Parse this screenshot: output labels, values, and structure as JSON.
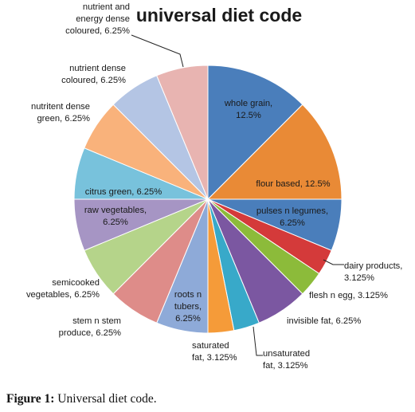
{
  "chart_data": {
    "type": "pie",
    "title": "universal diet code",
    "slices": [
      {
        "name": "whole grain",
        "value": 12.5,
        "pct_label": "12.5%",
        "color": "#4a7ebb"
      },
      {
        "name": "flour based",
        "value": 12.5,
        "pct_label": "12.5%",
        "color": "#e98a36"
      },
      {
        "name": "pulses n legumes",
        "value": 6.25,
        "pct_label": "6.25%",
        "color": "#4a7ebb"
      },
      {
        "name": "dairy products",
        "value": 3.125,
        "pct_label": "3.125%",
        "color": "#d43a3a"
      },
      {
        "name": "flesh n egg",
        "value": 3.125,
        "pct_label": "3.125%",
        "color": "#8cbb3a"
      },
      {
        "name": "invisible fat",
        "value": 6.25,
        "pct_label": "6.25%",
        "color": "#7b57a1"
      },
      {
        "name": "unsaturated fat",
        "value": 3.125,
        "pct_label": "3.125%",
        "color": "#38a9c9"
      },
      {
        "name": "saturated fat",
        "value": 3.125,
        "pct_label": "3.125%",
        "color": "#f59b39"
      },
      {
        "name": "roots n tubers",
        "value": 6.25,
        "pct_label": "6.25%",
        "color": "#8eaad8"
      },
      {
        "name": "stem n stem produce",
        "value": 6.25,
        "pct_label": "6.25%",
        "color": "#de8c89"
      },
      {
        "name": "semicooked vegetables",
        "value": 6.25,
        "pct_label": "6.25%",
        "color": "#b5d48a"
      },
      {
        "name": "raw vegetables",
        "value": 6.25,
        "pct_label": "6.25%",
        "color": "#a695c4"
      },
      {
        "name": "citrus green",
        "value": 6.25,
        "pct_label": "6.25%",
        "color": "#78c2dc"
      },
      {
        "name": "nutritent dense green",
        "value": 6.25,
        "pct_label": "6.25%",
        "color": "#f9b27b"
      },
      {
        "name": "nutrient dense coloured",
        "value": 6.25,
        "pct_label": "6.25%",
        "color": "#b4c5e4"
      },
      {
        "name": "nutrient and energy dense coloured",
        "value": 6.25,
        "pct_label": "6.25%",
        "color": "#e8b4b1"
      }
    ],
    "labels": [
      {
        "lines": [
          "whole grain,",
          "12.5%"
        ]
      },
      {
        "lines": [
          "flour based, 12.5%"
        ]
      },
      {
        "lines": [
          "pulses n legumes,",
          "6.25%"
        ]
      },
      {
        "lines": [
          "dairy products,",
          "3.125%"
        ]
      },
      {
        "lines": [
          "flesh n egg,  3.125%"
        ]
      },
      {
        "lines": [
          "invisible fat, 6.25%"
        ]
      },
      {
        "lines": [
          "unsaturated",
          "fat, 3.125%"
        ]
      },
      {
        "lines": [
          "saturated",
          "fat, 3.125%"
        ]
      },
      {
        "lines": [
          "roots n",
          "tubers,",
          "6.25%"
        ]
      },
      {
        "lines": [
          "stem n stem",
          "produce, 6.25%"
        ]
      },
      {
        "lines": [
          "semicooked",
          "vegetables, 6.25%"
        ]
      },
      {
        "lines": [
          "raw vegetables,",
          "6.25%"
        ]
      },
      {
        "lines": [
          "citrus green, 6.25%"
        ]
      },
      {
        "lines": [
          "nutritent dense",
          "green,  6.25%"
        ]
      },
      {
        "lines": [
          "nutrient dense",
          "coloured, 6.25%"
        ]
      },
      {
        "lines": [
          "nutrient and",
          "energy dense",
          "coloured, 6.25%"
        ]
      }
    ]
  },
  "caption": {
    "label": "Figure 1:",
    "text": " Universal diet code."
  }
}
